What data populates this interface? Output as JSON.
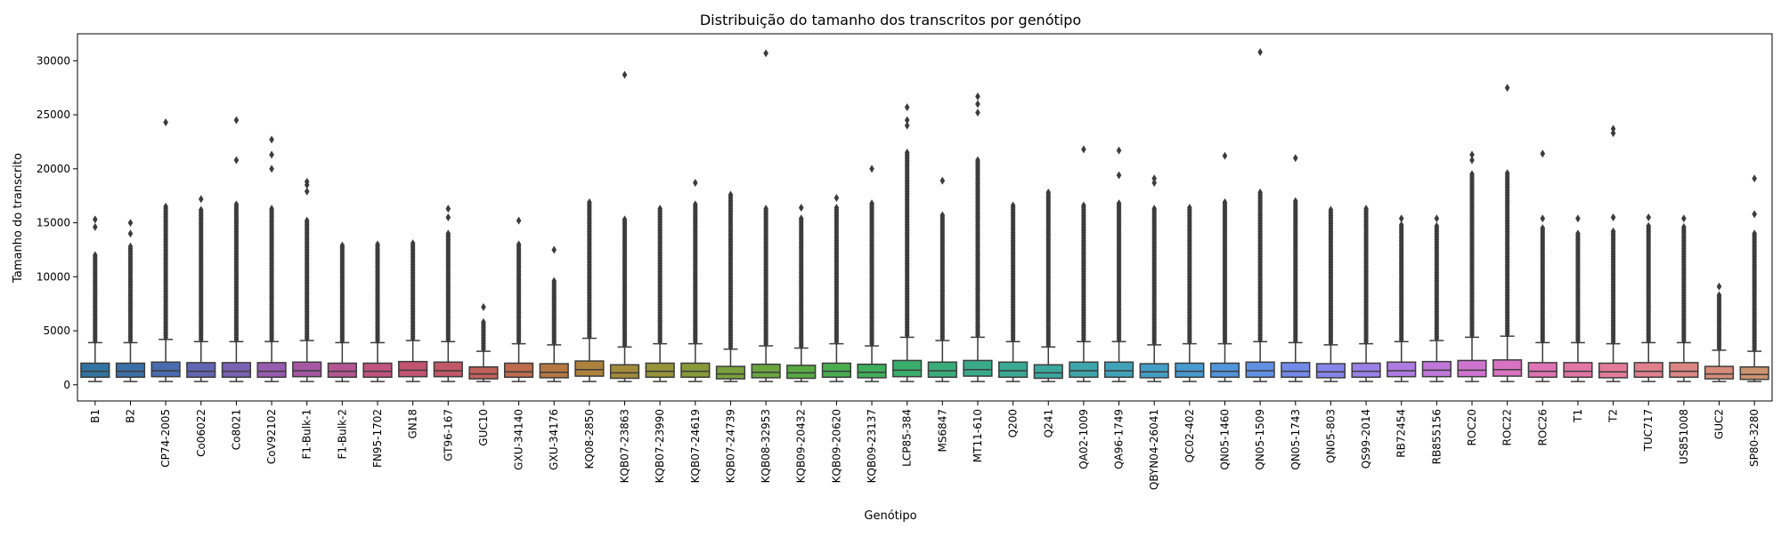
{
  "chart_data": {
    "type": "box",
    "title": "Distribuição do tamanho dos transcritos por genótipo",
    "xlabel": "Genótipo",
    "ylabel": "Tamanho do transcrito",
    "ylim": [
      -1500,
      32500
    ],
    "yticks": [
      0,
      5000,
      10000,
      15000,
      20000,
      25000,
      30000
    ],
    "grid": false,
    "legend": "none",
    "categories": [
      "B1",
      "B2",
      "CP74-2005",
      "Co06022",
      "Co8021",
      "CoV92102",
      "F1-Bulk-1",
      "F1-Bulk-2",
      "FN95-1702",
      "GN18",
      "GT96-167",
      "GUC10",
      "GXU-34140",
      "GXU-34176",
      "KQ08-2850",
      "KQB07-23863",
      "KQB07-23990",
      "KQB07-24619",
      "KQB07-24739",
      "KQB08-32953",
      "KQB09-20432",
      "KQB09-20620",
      "KQB09-23137",
      "LCP85-384",
      "MS6847",
      "MT11-610",
      "Q200",
      "Q241",
      "QA02-1009",
      "QA96-1749",
      "QBYN04-26041",
      "QC02-402",
      "QN05-1460",
      "QN05-1509",
      "QN05-1743",
      "QN05-803",
      "QS99-2014",
      "RB72454",
      "RB855156",
      "ROC20",
      "ROC22",
      "ROC26",
      "T1",
      "T2",
      "TUC717",
      "US851008",
      "GUC2",
      "SP80-3280"
    ],
    "series": [
      {
        "boxes": [
          {
            "whislo": 300,
            "q1": 700,
            "med": 1250,
            "q3": 2000,
            "whishi": 3900,
            "fmax": 12000,
            "outliers": [
              14600,
              15300
            ]
          },
          {
            "whislo": 300,
            "q1": 700,
            "med": 1250,
            "q3": 2000,
            "whishi": 3900,
            "fmax": 12800,
            "outliers": [
              14000,
              15000
            ]
          },
          {
            "whislo": 300,
            "q1": 750,
            "med": 1300,
            "q3": 2100,
            "whishi": 4200,
            "fmax": 16500,
            "outliers": [
              24300
            ]
          },
          {
            "whislo": 300,
            "q1": 700,
            "med": 1250,
            "q3": 2050,
            "whishi": 4000,
            "fmax": 16200,
            "outliers": [
              17200
            ]
          },
          {
            "whislo": 300,
            "q1": 700,
            "med": 1250,
            "q3": 2050,
            "whishi": 4000,
            "fmax": 16700,
            "outliers": [
              20800,
              24500
            ]
          },
          {
            "whislo": 300,
            "q1": 700,
            "med": 1250,
            "q3": 2050,
            "whishi": 4000,
            "fmax": 16300,
            "outliers": [
              20000,
              21300,
              22700
            ]
          },
          {
            "whislo": 300,
            "q1": 750,
            "med": 1300,
            "q3": 2100,
            "whishi": 4100,
            "fmax": 15200,
            "outliers": [
              17900,
              18500,
              18800
            ]
          },
          {
            "whislo": 300,
            "q1": 700,
            "med": 1250,
            "q3": 2000,
            "whishi": 3900,
            "fmax": 12900,
            "outliers": []
          },
          {
            "whislo": 300,
            "q1": 700,
            "med": 1250,
            "q3": 2000,
            "whishi": 3900,
            "fmax": 13000,
            "outliers": []
          },
          {
            "whislo": 300,
            "q1": 750,
            "med": 1350,
            "q3": 2150,
            "whishi": 4100,
            "fmax": 13100,
            "outliers": []
          },
          {
            "whislo": 300,
            "q1": 750,
            "med": 1300,
            "q3": 2100,
            "whishi": 4000,
            "fmax": 14000,
            "outliers": [
              15500,
              16300
            ]
          },
          {
            "whislo": 300,
            "q1": 550,
            "med": 1000,
            "q3": 1650,
            "whishi": 3100,
            "fmax": 5800,
            "outliers": [
              7200
            ]
          },
          {
            "whislo": 300,
            "q1": 700,
            "med": 1200,
            "q3": 2000,
            "whishi": 3800,
            "fmax": 13000,
            "outliers": [
              15200
            ]
          },
          {
            "whislo": 300,
            "q1": 650,
            "med": 1150,
            "q3": 1950,
            "whishi": 3700,
            "fmax": 9600,
            "outliers": [
              12500
            ]
          },
          {
            "whislo": 300,
            "q1": 800,
            "med": 1400,
            "q3": 2200,
            "whishi": 4300,
            "fmax": 16900,
            "outliers": []
          },
          {
            "whislo": 300,
            "q1": 600,
            "med": 1100,
            "q3": 1850,
            "whishi": 3500,
            "fmax": 15300,
            "outliers": [
              28700
            ]
          },
          {
            "whislo": 300,
            "q1": 700,
            "med": 1250,
            "q3": 2000,
            "whishi": 3800,
            "fmax": 16300,
            "outliers": []
          },
          {
            "whislo": 300,
            "q1": 700,
            "med": 1250,
            "q3": 2000,
            "whishi": 3800,
            "fmax": 16700,
            "outliers": [
              18700
            ]
          },
          {
            "whislo": 300,
            "q1": 550,
            "med": 1000,
            "q3": 1700,
            "whishi": 3300,
            "fmax": 17600,
            "outliers": []
          },
          {
            "whislo": 300,
            "q1": 650,
            "med": 1150,
            "q3": 1900,
            "whishi": 3600,
            "fmax": 16300,
            "outliers": [
              30700
            ]
          },
          {
            "whislo": 300,
            "q1": 600,
            "med": 1100,
            "q3": 1800,
            "whishi": 3400,
            "fmax": 15400,
            "outliers": [
              16400
            ]
          },
          {
            "whislo": 300,
            "q1": 700,
            "med": 1250,
            "q3": 2000,
            "whishi": 3800,
            "fmax": 16400,
            "outliers": [
              17300
            ]
          },
          {
            "whislo": 300,
            "q1": 650,
            "med": 1150,
            "q3": 1900,
            "whishi": 3600,
            "fmax": 16800,
            "outliers": [
              20000
            ]
          },
          {
            "whislo": 300,
            "q1": 750,
            "med": 1350,
            "q3": 2250,
            "whishi": 4400,
            "fmax": 21500,
            "outliers": [
              24000,
              24500,
              25700
            ]
          },
          {
            "whislo": 300,
            "q1": 700,
            "med": 1300,
            "q3": 2100,
            "whishi": 4100,
            "fmax": 15700,
            "outliers": [
              18900
            ]
          },
          {
            "whislo": 300,
            "q1": 800,
            "med": 1400,
            "q3": 2250,
            "whishi": 4400,
            "fmax": 20800,
            "outliers": [
              25200,
              26000,
              26700
            ]
          },
          {
            "whislo": 300,
            "q1": 700,
            "med": 1300,
            "q3": 2100,
            "whishi": 4000,
            "fmax": 16600,
            "outliers": []
          },
          {
            "whislo": 300,
            "q1": 600,
            "med": 1100,
            "q3": 1850,
            "whishi": 3500,
            "fmax": 17800,
            "outliers": []
          },
          {
            "whislo": 300,
            "q1": 700,
            "med": 1300,
            "q3": 2100,
            "whishi": 4000,
            "fmax": 16600,
            "outliers": [
              21800
            ]
          },
          {
            "whislo": 300,
            "q1": 700,
            "med": 1300,
            "q3": 2100,
            "whishi": 4000,
            "fmax": 16800,
            "outliers": [
              19400,
              21700
            ]
          },
          {
            "whislo": 300,
            "q1": 650,
            "med": 1200,
            "q3": 1950,
            "whishi": 3700,
            "fmax": 16300,
            "outliers": [
              18700,
              19100
            ]
          },
          {
            "whislo": 300,
            "q1": 700,
            "med": 1250,
            "q3": 2000,
            "whishi": 3800,
            "fmax": 16400,
            "outliers": []
          },
          {
            "whislo": 300,
            "q1": 700,
            "med": 1250,
            "q3": 2000,
            "whishi": 3800,
            "fmax": 16900,
            "outliers": [
              21200
            ]
          },
          {
            "whislo": 300,
            "q1": 700,
            "med": 1300,
            "q3": 2100,
            "whishi": 4000,
            "fmax": 17800,
            "outliers": [
              30800
            ]
          },
          {
            "whislo": 300,
            "q1": 700,
            "med": 1250,
            "q3": 2050,
            "whishi": 3900,
            "fmax": 17000,
            "outliers": [
              21000
            ]
          },
          {
            "whislo": 300,
            "q1": 650,
            "med": 1200,
            "q3": 1950,
            "whishi": 3700,
            "fmax": 16200,
            "outliers": []
          },
          {
            "whislo": 300,
            "q1": 700,
            "med": 1250,
            "q3": 2000,
            "whishi": 3800,
            "fmax": 16300,
            "outliers": []
          },
          {
            "whislo": 300,
            "q1": 750,
            "med": 1300,
            "q3": 2100,
            "whishi": 4000,
            "fmax": 14800,
            "outliers": [
              15400
            ]
          },
          {
            "whislo": 300,
            "q1": 750,
            "med": 1350,
            "q3": 2150,
            "whishi": 4100,
            "fmax": 14700,
            "outliers": [
              15400
            ]
          },
          {
            "whislo": 300,
            "q1": 750,
            "med": 1350,
            "q3": 2250,
            "whishi": 4400,
            "fmax": 19500,
            "outliers": [
              20800,
              21300
            ]
          },
          {
            "whislo": 300,
            "q1": 800,
            "med": 1400,
            "q3": 2300,
            "whishi": 4500,
            "fmax": 19600,
            "outliers": [
              27500
            ]
          },
          {
            "whislo": 300,
            "q1": 700,
            "med": 1250,
            "q3": 2050,
            "whishi": 3900,
            "fmax": 14500,
            "outliers": [
              15400,
              21400
            ]
          },
          {
            "whislo": 300,
            "q1": 700,
            "med": 1250,
            "q3": 2050,
            "whishi": 3900,
            "fmax": 14000,
            "outliers": [
              15400
            ]
          },
          {
            "whislo": 300,
            "q1": 650,
            "med": 1200,
            "q3": 2000,
            "whishi": 3800,
            "fmax": 14200,
            "outliers": [
              15500,
              23300,
              23700
            ]
          },
          {
            "whislo": 300,
            "q1": 700,
            "med": 1250,
            "q3": 2050,
            "whishi": 3900,
            "fmax": 14700,
            "outliers": [
              15500
            ]
          },
          {
            "whislo": 300,
            "q1": 700,
            "med": 1250,
            "q3": 2050,
            "whishi": 3900,
            "fmax": 14600,
            "outliers": [
              15400
            ]
          },
          {
            "whislo": 300,
            "q1": 550,
            "med": 1000,
            "q3": 1700,
            "whishi": 3200,
            "fmax": 8300,
            "outliers": [
              9100
            ]
          },
          {
            "whislo": 300,
            "q1": 500,
            "med": 950,
            "q3": 1650,
            "whishi": 3100,
            "fmax": 14000,
            "outliers": [
              15800,
              19100
            ]
          }
        ]
      }
    ],
    "colors": [
      "#3274a1",
      "#3d6fa7",
      "#4a6bad",
      "#6265b1",
      "#7b61b3",
      "#965caf",
      "#a658a4",
      "#b45692",
      "#c0547e",
      "#c25470",
      "#c15866",
      "#c0615b",
      "#bd6b4f",
      "#b77743",
      "#ad823c",
      "#a28b3a",
      "#96933a",
      "#889a3a",
      "#7aa03c",
      "#6aa53f",
      "#59aa45",
      "#4aad50",
      "#3faf5d",
      "#3aae6b",
      "#3aac7a",
      "#3aab87",
      "#3ba993",
      "#3ca79f",
      "#3ea5ab",
      "#40a2b8",
      "#439ec5",
      "#489ad1",
      "#5195da",
      "#6090e2",
      "#728ae8",
      "#8685ea",
      "#9a80e8",
      "#ad7be2",
      "#bf77d9",
      "#ce74cf",
      "#d873c2",
      "#de74b4",
      "#e177a7",
      "#e27b9a",
      "#e0808e",
      "#db8683",
      "#d58c79",
      "#cd9370"
    ],
    "outlier_color": "#3c3c3c",
    "line_color": "#3c3c3c"
  }
}
